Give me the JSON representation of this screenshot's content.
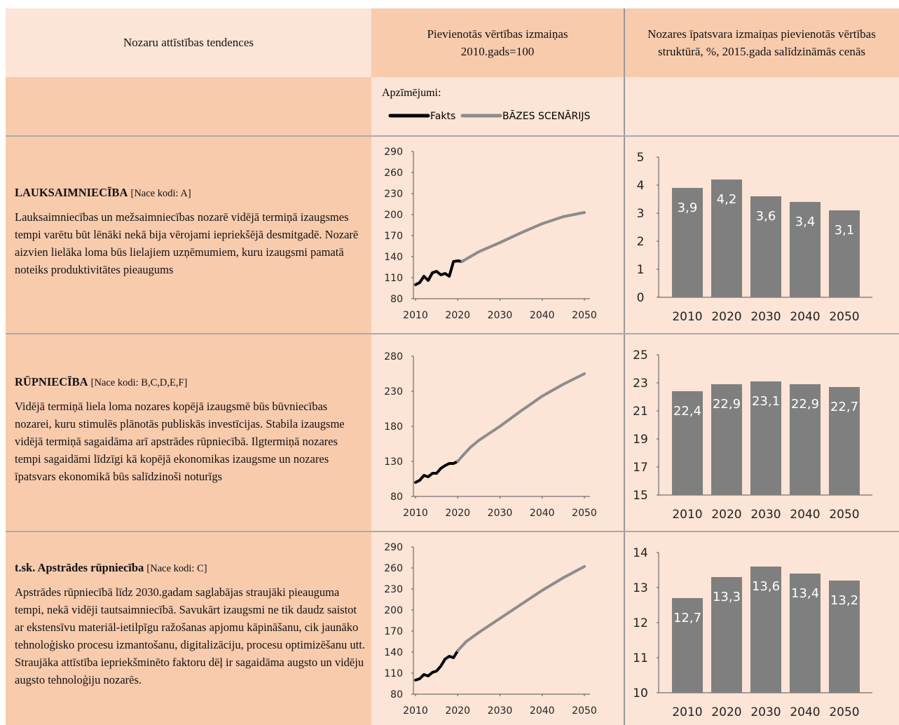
{
  "header": {
    "col1": "Nozaru attīstības tendences",
    "col2": [
      "Pievienotās vērtības izmaiņas",
      "2010.gads=100"
    ],
    "col3": [
      "Nozares īpatsvara izmaiņas pievienotās vērtības",
      "struktūrā, %, 2015.gada salīdzināmās cenās"
    ]
  },
  "legend": {
    "title": "Apzīmējumi:",
    "items": [
      {
        "name": "Fakts",
        "color": "#000000"
      },
      {
        "name": "BĀZES SCENĀRIJS",
        "color": "#8c8c8c"
      }
    ]
  },
  "rows": [
    {
      "title": "LAUKSAIMNIECĪBA",
      "code": "[Nace kodi: A]",
      "text": "Lauksaimniecības un mežsaimniecības nozarē vidējā termiņā izaugsmes tempi varētu būt lēnāki nekā bija vērojami iepriekšējā desmitgadē. Nozarē aizvien lielāka loma būs lielajiem uzņēmumiem, kuru izaugsmi pamatā noteiks produktivitātes pieaugums",
      "line_chart": {
        "type": "line",
        "xlim": [
          2010,
          2050
        ],
        "xticks": [
          2010,
          2020,
          2030,
          2040,
          2050
        ],
        "ylim": [
          80,
          290
        ],
        "yticks": [
          80,
          110,
          140,
          170,
          200,
          230,
          260,
          290
        ],
        "series": [
          {
            "x": [
              2010,
              2011,
              2012,
              2013,
              2014,
              2015,
              2016,
              2017,
              2018,
              2019,
              2020,
              2021
            ],
            "values": [
              100,
              103,
              112,
              106,
              117,
              119,
              114,
              116,
              112,
              133,
              134,
              133
            ]
          },
          {
            "x": [
              2021,
              2025,
              2030,
              2035,
              2040,
              2045,
              2050
            ],
            "values": [
              133,
              147,
              160,
              174,
              187,
              197,
              203
            ]
          }
        ]
      },
      "bar_chart": {
        "type": "bar",
        "color": "#7f7f7f",
        "categories": [
          "2010",
          "2020",
          "2030",
          "2040",
          "2050"
        ],
        "values": [
          3.9,
          4.2,
          3.6,
          3.4,
          3.1
        ],
        "value_labels": [
          "3,9",
          "4,2",
          "3,6",
          "3,4",
          "3,1"
        ],
        "ylim": [
          0,
          5
        ],
        "yticks": [
          0,
          1,
          2,
          3,
          4,
          5
        ]
      }
    },
    {
      "title": "RŪPNIECĪBA",
      "code": "[Nace kodi: B,C,D,E,F]",
      "text": "Vidējā termiņā liela loma nozares kopējā izaugsmē būs būvniecības nozarei, kuru stimulēs plānotās publiskās investīcijas. Stabila izaugsme vidējā termiņā sagaidāma arī apstrādes rūpniecībā. Ilgtermiņā nozares tempi sagaidāmi līdzīgi kā kopējā ekonomikas izaugsme un nozares īpatsvars ekonomikā būs salīdzinoši noturīgs",
      "line_chart": {
        "type": "line",
        "xlim": [
          2010,
          2050
        ],
        "xticks": [
          2010,
          2020,
          2030,
          2040,
          2050
        ],
        "ylim": [
          80,
          280
        ],
        "yticks": [
          80,
          130,
          180,
          230,
          280
        ],
        "series": [
          {
            "x": [
              2010,
              2011,
              2012,
              2013,
              2014,
              2015,
              2016,
              2017,
              2018,
              2019,
              2020
            ],
            "values": [
              100,
              103,
              110,
              108,
              113,
              113,
              120,
              124,
              127,
              127,
              130
            ]
          },
          {
            "x": [
              2020,
              2021,
              2023,
              2025,
              2030,
              2035,
              2040,
              2045,
              2050
            ],
            "values": [
              130,
              137,
              150,
              160,
              180,
              202,
              223,
              240,
              255
            ]
          }
        ]
      },
      "bar_chart": {
        "type": "bar",
        "color": "#7f7f7f",
        "categories": [
          "2010",
          "2020",
          "2030",
          "2040",
          "2050"
        ],
        "values": [
          22.4,
          22.9,
          23.1,
          22.9,
          22.7
        ],
        "value_labels": [
          "22,4",
          "22,9",
          "23,1",
          "22,9",
          "22,7"
        ],
        "ylim": [
          15,
          25
        ],
        "yticks": [
          15,
          17,
          19,
          21,
          23,
          25
        ]
      }
    },
    {
      "title": "t.sk. Apstrādes rūpniecība",
      "code": "[Nace kodi: C]",
      "text": "Apstrādes rūpniecībā līdz 2030.gadam saglabājas straujāki pieauguma tempi, nekā vidēji tautsaimniecībā. Savukārt izaugsmi ne tik daudz saistot ar ekstensīvu materiāl-ietilpīgu ražošanas apjomu kāpināšanu, cik jaunāko tehnoloģisko procesu izmantošanu, digitalizāciju, procesu optimizēšanu utt. Straujāka attīstība iepriekšminēto faktoru dēļ ir sagaidāma augsto un vidēju augsto tehnoloģiju nozarēs.",
      "line_chart": {
        "type": "line",
        "xlim": [
          2010,
          2050
        ],
        "xticks": [
          2010,
          2020,
          2030,
          2040,
          2050
        ],
        "ylim": [
          80,
          290
        ],
        "yticks": [
          80,
          110,
          140,
          170,
          200,
          230,
          260,
          290
        ],
        "series": [
          {
            "x": [
              2010,
              2011,
              2012,
              2013,
              2014,
              2015,
              2016,
              2017,
              2018,
              2019,
              2020
            ],
            "values": [
              100,
              102,
              108,
              106,
              111,
              113,
              120,
              130,
              134,
              132,
              142
            ]
          },
          {
            "x": [
              2020,
              2022,
              2025,
              2030,
              2035,
              2040,
              2045,
              2050
            ],
            "values": [
              142,
              155,
              168,
              188,
              208,
              228,
              246,
              262
            ]
          }
        ]
      },
      "bar_chart": {
        "type": "bar",
        "color": "#7f7f7f",
        "categories": [
          "2010",
          "2020",
          "2030",
          "2040",
          "2050"
        ],
        "values": [
          12.7,
          13.3,
          13.6,
          13.4,
          13.2
        ],
        "value_labels": [
          "12,7",
          "13,3",
          "13,6",
          "13,4",
          "13,2"
        ],
        "ylim": [
          10,
          14
        ],
        "yticks": [
          10,
          11,
          12,
          13,
          14
        ]
      }
    }
  ]
}
